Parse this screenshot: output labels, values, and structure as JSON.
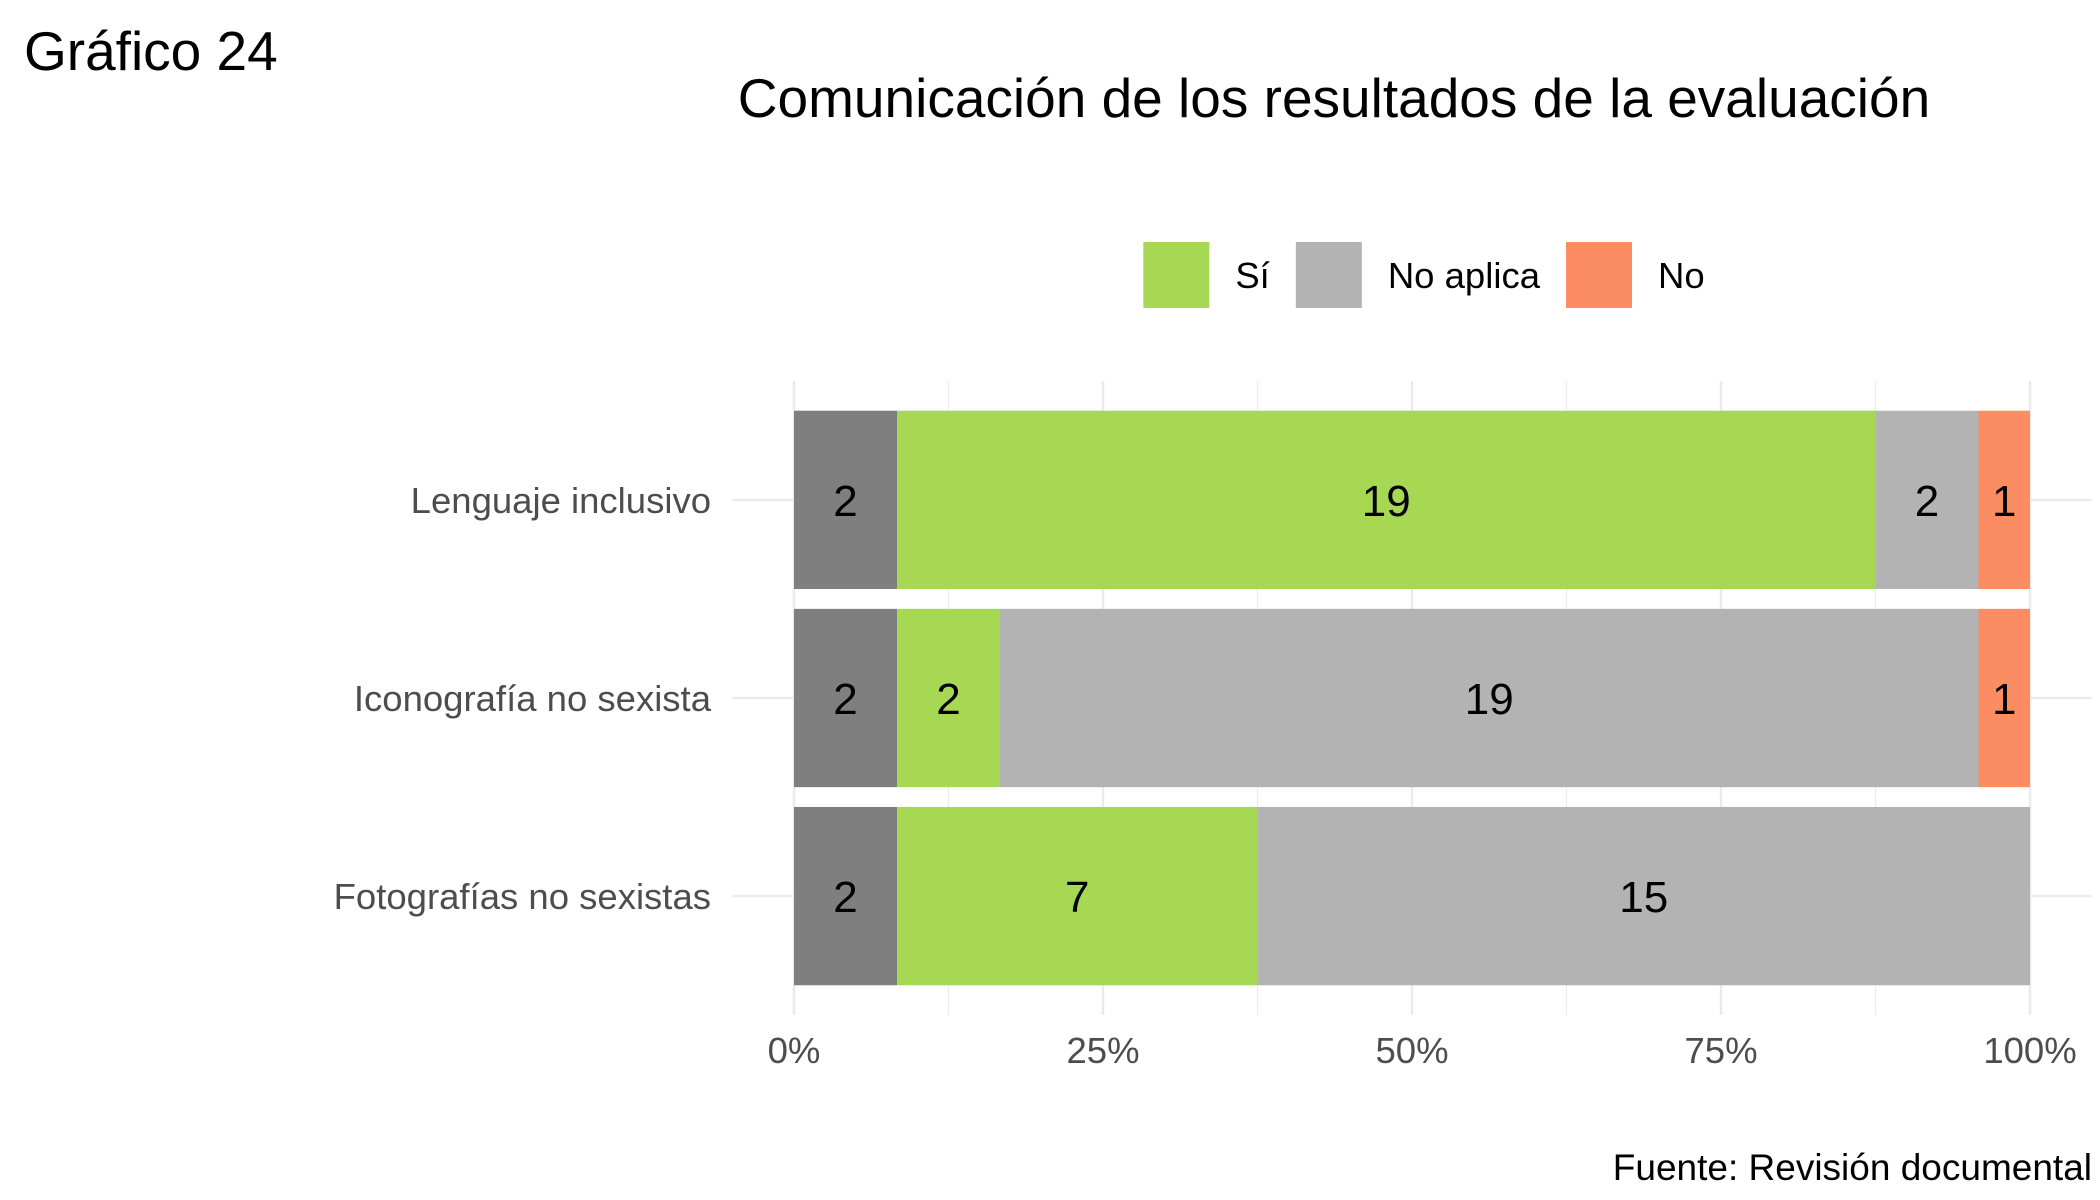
{
  "figure_label": "Gráfico 24",
  "source": "Fuente: Revisión documental",
  "chart_data": {
    "type": "bar",
    "orientation": "horizontal",
    "stacked_percent": true,
    "title": "Comunicación de los resultados de la evaluación",
    "categories": [
      "Lenguaje inclusivo",
      "Iconografía no sexista",
      "Fotografías no sexistas"
    ],
    "series": [
      {
        "values": [
          2,
          2,
          2
        ],
        "color": "#7f7f7f"
      },
      {
        "name": "Sí",
        "values": [
          19,
          2,
          7
        ],
        "color": "#a6d854"
      },
      {
        "name": "No aplica",
        "values": [
          2,
          19,
          15
        ],
        "color": "#b3b3b3"
      },
      {
        "name": "No",
        "values": [
          1,
          1,
          0
        ],
        "color": "#fc8d62"
      }
    ],
    "xlim": [
      0,
      100
    ],
    "xticks": [
      0,
      25,
      50,
      75,
      100
    ],
    "xtick_labels": [
      "0%",
      "25%",
      "50%",
      "75%",
      "100%"
    ],
    "data_labels": true,
    "grid": true,
    "legend": "top"
  }
}
